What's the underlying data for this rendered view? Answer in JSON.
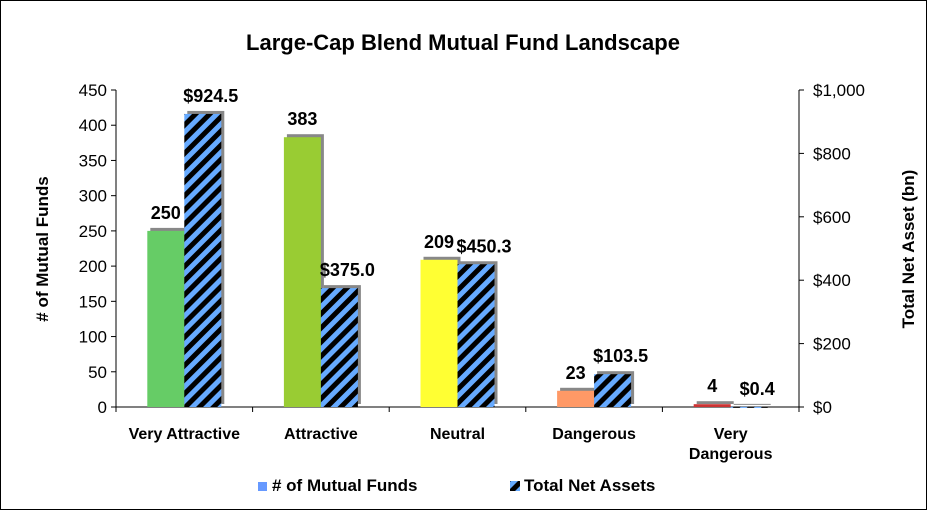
{
  "chart_data": {
    "type": "bar",
    "title": "Large-Cap Blend Mutual Fund Landscape",
    "categories": [
      [
        "Very Attractive"
      ],
      [
        "Attractive"
      ],
      [
        "Neutral"
      ],
      [
        "Dangerous"
      ],
      [
        "Very",
        "Dangerous"
      ]
    ],
    "series": [
      {
        "name": "# of Mutual Funds",
        "axis": "left",
        "values": [
          250,
          383,
          209,
          23,
          4
        ],
        "labels": [
          "250",
          "383",
          "209",
          "23",
          "4"
        ],
        "colors": [
          "#66cc66",
          "#99cc33",
          "#ffff33",
          "#ff9966",
          "#cc3333"
        ],
        "legend_color": "#6699ff"
      },
      {
        "name": "Total Net Assets",
        "axis": "right",
        "values": [
          924.5,
          375.0,
          450.3,
          103.5,
          0.4
        ],
        "labels": [
          "$924.5",
          "$375.0",
          "$450.3",
          "$103.5",
          "$0.4"
        ],
        "pattern": "diagonal-stripes",
        "colors": [
          "#66aaff",
          "#000000"
        ]
      }
    ],
    "ylabel_left": "# of Mutual Funds",
    "ylabel_right": "Total Net Asset (bn)",
    "ylim_left": [
      0,
      450
    ],
    "yticks_left": [
      "0",
      "50",
      "100",
      "150",
      "200",
      "250",
      "300",
      "350",
      "400",
      "450"
    ],
    "ylim_right": [
      0,
      1000
    ],
    "yticks_right": [
      "$0",
      "$200",
      "$400",
      "$600",
      "$800",
      "$1,000"
    ],
    "legend_position": "bottom",
    "grid": false
  }
}
